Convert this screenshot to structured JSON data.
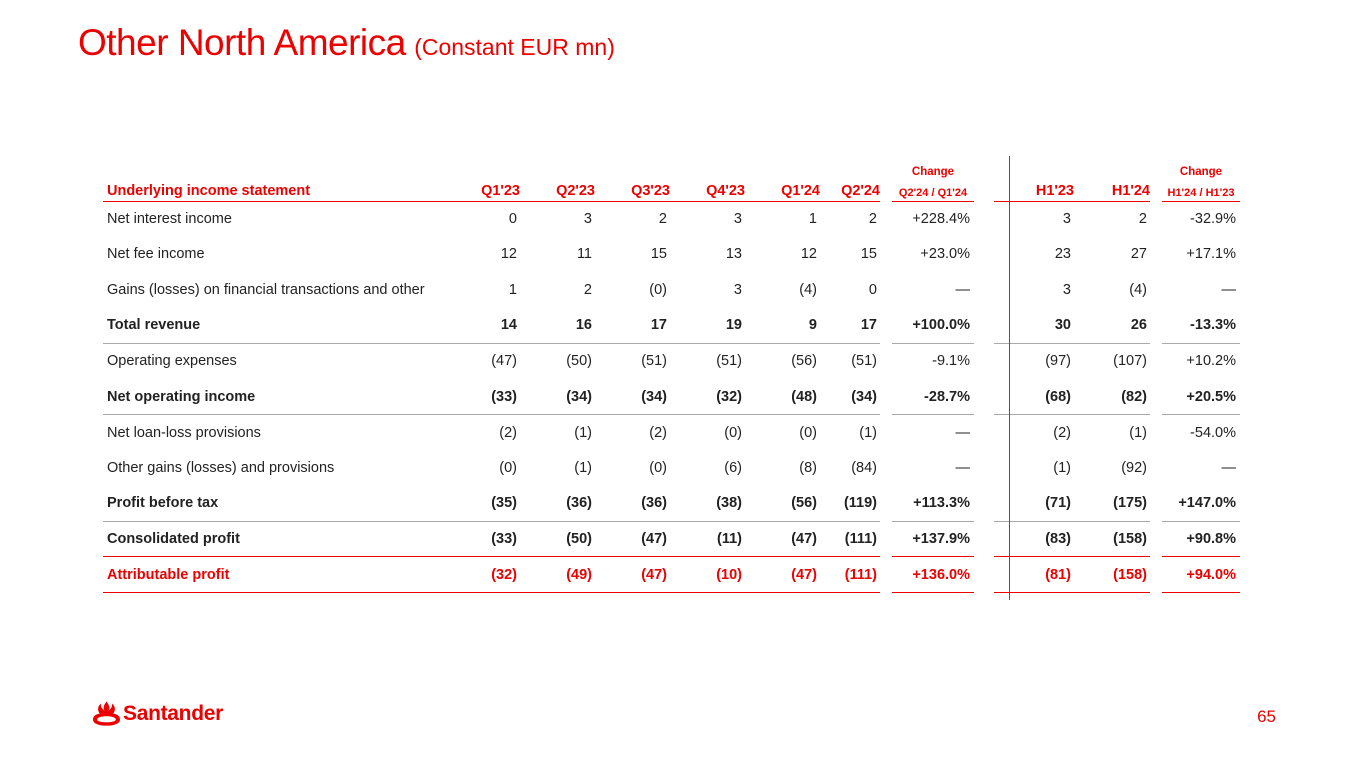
{
  "title": {
    "main": "Other North America",
    "sub": "(Constant EUR mn)"
  },
  "table": {
    "change_label": "Change",
    "header": {
      "label": "Underlying income statement",
      "quarters": [
        "Q1'23",
        "Q2'23",
        "Q3'23",
        "Q4'23",
        "Q1'24",
        "Q2'24"
      ],
      "change_q": "Q2'24 / Q1'24",
      "halves": [
        "H1'23",
        "H1'24"
      ],
      "change_h": "H1'24 / H1'23"
    },
    "rows": [
      {
        "label": "Net interest income",
        "q": [
          "0",
          "3",
          "2",
          "3",
          "1",
          "2"
        ],
        "chg_q": "+228.4%",
        "h": [
          "3",
          "2"
        ],
        "chg_h": "-32.9%"
      },
      {
        "label": "Net fee income",
        "q": [
          "12",
          "11",
          "15",
          "13",
          "12",
          "15"
        ],
        "chg_q": "+23.0%",
        "h": [
          "23",
          "27"
        ],
        "chg_h": "+17.1%"
      },
      {
        "label": "Gains (losses) on financial transactions and other",
        "q": [
          "1",
          "2",
          "(0)",
          "3",
          "(4)",
          "0"
        ],
        "chg_q": "—",
        "h": [
          "3",
          "(4)"
        ],
        "chg_h": "—"
      },
      {
        "label": "Total revenue",
        "q": [
          "14",
          "16",
          "17",
          "19",
          "9",
          "17"
        ],
        "chg_q": "+100.0%",
        "h": [
          "30",
          "26"
        ],
        "chg_h": "-13.3%"
      },
      {
        "label": "Operating expenses",
        "q": [
          "(47)",
          "(50)",
          "(51)",
          "(51)",
          "(56)",
          "(51)"
        ],
        "chg_q": "-9.1%",
        "h": [
          "(97)",
          "(107)"
        ],
        "chg_h": "+10.2%"
      },
      {
        "label": "Net operating income",
        "q": [
          "(33)",
          "(34)",
          "(34)",
          "(32)",
          "(48)",
          "(34)"
        ],
        "chg_q": "-28.7%",
        "h": [
          "(68)",
          "(82)"
        ],
        "chg_h": "+20.5%"
      },
      {
        "label": "Net loan-loss provisions",
        "q": [
          "(2)",
          "(1)",
          "(2)",
          "(0)",
          "(0)",
          "(1)"
        ],
        "chg_q": "—",
        "h": [
          "(2)",
          "(1)"
        ],
        "chg_h": "-54.0%"
      },
      {
        "label": "Other gains (losses) and provisions",
        "q": [
          "(0)",
          "(1)",
          "(0)",
          "(6)",
          "(8)",
          "(84)"
        ],
        "chg_q": "—",
        "h": [
          "(1)",
          "(92)"
        ],
        "chg_h": "—"
      },
      {
        "label": "Profit before tax",
        "q": [
          "(35)",
          "(36)",
          "(36)",
          "(38)",
          "(56)",
          "(119)"
        ],
        "chg_q": "+113.3%",
        "h": [
          "(71)",
          "(175)"
        ],
        "chg_h": "+147.0%"
      },
      {
        "label": "Consolidated profit",
        "q": [
          "(33)",
          "(50)",
          "(47)",
          "(11)",
          "(47)",
          "(111)"
        ],
        "chg_q": "+137.9%",
        "h": [
          "(83)",
          "(158)"
        ],
        "chg_h": "+90.8%"
      },
      {
        "label": "Attributable profit",
        "q": [
          "(32)",
          "(49)",
          "(47)",
          "(10)",
          "(47)",
          "(111)"
        ],
        "chg_q": "+136.0%",
        "h": [
          "(81)",
          "(158)"
        ],
        "chg_h": "+94.0%"
      }
    ]
  },
  "footer": {
    "logo_icon": "santander-flame-icon",
    "brand": "Santander",
    "page_number": "65"
  },
  "colors": {
    "accent": "#ec0000",
    "text": "#222222",
    "separator": "#a9a9a9"
  }
}
